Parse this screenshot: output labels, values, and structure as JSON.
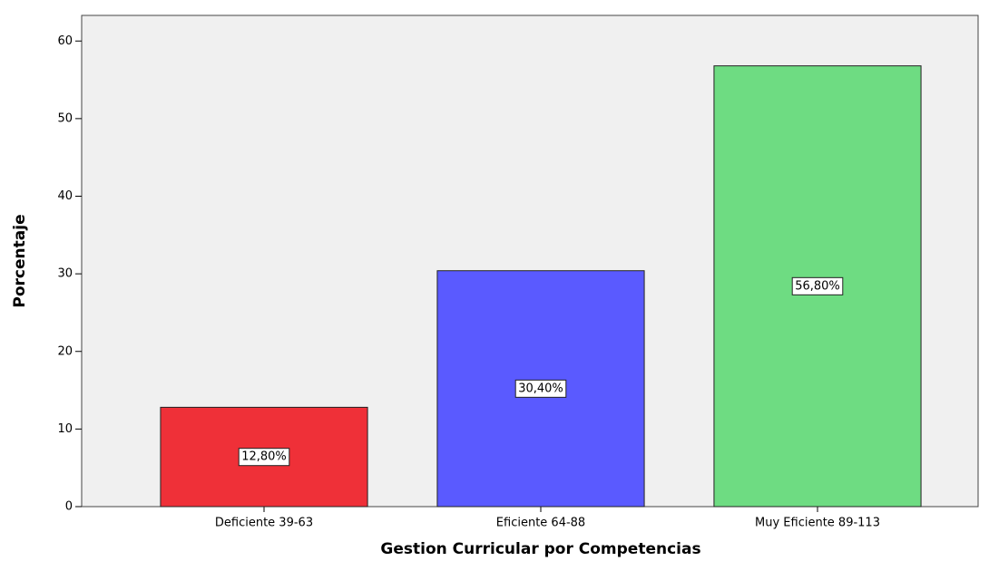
{
  "chart_data": {
    "type": "bar",
    "categories": [
      "Deficiente 39-63",
      "Eficiente 64-88",
      "Muy Eficiente 89-113"
    ],
    "values": [
      12.8,
      30.4,
      56.8
    ],
    "value_labels": [
      "12,80%",
      "30,40%",
      "56,80%"
    ],
    "colors": [
      "#ef3038",
      "#5a5aff",
      "#6edc82"
    ],
    "ylabel": "Porcentaje",
    "xlabel": "Gestion Curricular por Competencias",
    "ylim": [
      0,
      63.3
    ],
    "yticks": [
      0,
      10,
      20,
      30,
      40,
      50,
      60
    ]
  }
}
